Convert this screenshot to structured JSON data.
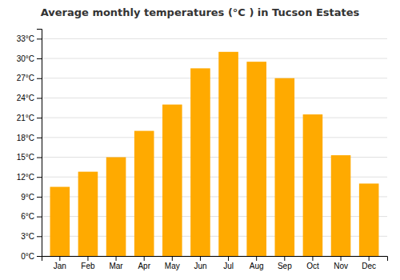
{
  "chart_data": {
    "type": "bar",
    "title": "Average monthly temperatures (°C ) in Tucson Estates",
    "categories": [
      "Jan",
      "Feb",
      "Mar",
      "Apr",
      "May",
      "Jun",
      "Jul",
      "Aug",
      "Sep",
      "Oct",
      "Nov",
      "Dec"
    ],
    "values": [
      10.5,
      12.8,
      15.0,
      19.0,
      23.0,
      28.5,
      31.0,
      29.5,
      27.0,
      21.5,
      15.3,
      11.0
    ],
    "color": "#FFAA00",
    "ylim": [
      0,
      34.5
    ],
    "yticks": [
      {
        "value": 0,
        "label": "0°C"
      },
      {
        "value": 3,
        "label": "3°C"
      },
      {
        "value": 6,
        "label": "6°C"
      },
      {
        "value": 9,
        "label": "9°C"
      },
      {
        "value": 12,
        "label": "12°C"
      },
      {
        "value": 15,
        "label": "15°C"
      },
      {
        "value": 18,
        "label": "18°C"
      },
      {
        "value": 21,
        "label": "21°C"
      },
      {
        "value": 24,
        "label": "24°C"
      },
      {
        "value": 27,
        "label": "27°C"
      },
      {
        "value": 30,
        "label": "30°C"
      },
      {
        "value": 33,
        "label": "33°C"
      }
    ],
    "grid": true
  }
}
